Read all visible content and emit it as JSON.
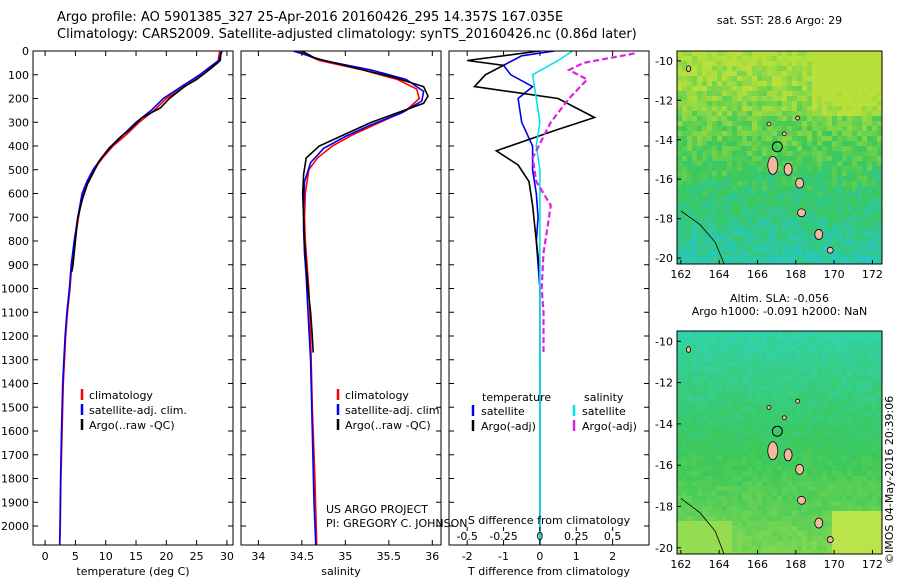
{
  "header": {
    "title_line1": "Argo profile: AO 5901385_327 25-Apr-2016 20160426_295 14.357S 167.035E",
    "title_line2": "Climatology: CARS2009. Satellite-adjusted climatology: synTS_20160426.nc (0.86d later)"
  },
  "credits": {
    "line1": "US ARGO PROJECT",
    "line2": "PI: GREGORY C. JOHNSON",
    "stamp": "©IMOS 04-May-2016 20:39:06"
  },
  "colors": {
    "climatology": "#ff0000",
    "satellite": "#0000ee",
    "argo": "#000000",
    "salinity_satellite": "#00e5e5",
    "salinity_argo": "#e020e0"
  },
  "chart_data": [
    {
      "type": "line",
      "xlabel": "temperature (deg C)",
      "ylabel": "",
      "xlim": [
        -2,
        31
      ],
      "ylim": [
        2080,
        0
      ],
      "xticks": [
        0,
        5,
        10,
        15,
        20,
        25,
        30
      ],
      "yticks": [
        0,
        100,
        200,
        300,
        400,
        500,
        600,
        700,
        800,
        900,
        1000,
        1100,
        1200,
        1300,
        1400,
        1500,
        1600,
        1700,
        1800,
        1900,
        2000
      ],
      "legend_position": "bottom-center",
      "series": [
        {
          "name": "climatology",
          "color": "#ff0000",
          "dashed": false,
          "points": [
            [
              28.8,
              0
            ],
            [
              28.5,
              50
            ],
            [
              26,
              100
            ],
            [
              23,
              150
            ],
            [
              20,
              200
            ],
            [
              18,
              250
            ],
            [
              15.5,
              300
            ],
            [
              13.5,
              350
            ],
            [
              11.2,
              400
            ],
            [
              9.5,
              450
            ],
            [
              8,
              500
            ],
            [
              7,
              550
            ],
            [
              6.2,
              600
            ],
            [
              5.5,
              700
            ],
            [
              4.9,
              800
            ],
            [
              4.4,
              900
            ],
            [
              4.1,
              1000
            ],
            [
              3.7,
              1100
            ],
            [
              3.4,
              1200
            ],
            [
              3.2,
              1300
            ],
            [
              3.0,
              1400
            ],
            [
              2.8,
              1600
            ],
            [
              2.6,
              1800
            ],
            [
              2.5,
              2000
            ],
            [
              2.4,
              2080
            ]
          ]
        },
        {
          "name": "satellite-adj. clim.",
          "color": "#0000ee",
          "dashed": false,
          "points": [
            [
              29.2,
              0
            ],
            [
              28.6,
              40
            ],
            [
              25.5,
              100
            ],
            [
              22.5,
              150
            ],
            [
              19.5,
              200
            ],
            [
              17.5,
              250
            ],
            [
              15,
              300
            ],
            [
              13,
              350
            ],
            [
              11,
              400
            ],
            [
              9.3,
              450
            ],
            [
              7.9,
              500
            ],
            [
              6.9,
              550
            ],
            [
              6.1,
              600
            ],
            [
              5.4,
              700
            ],
            [
              4.8,
              800
            ],
            [
              4.3,
              900
            ],
            [
              4.0,
              1000
            ],
            [
              3.6,
              1100
            ],
            [
              3.3,
              1200
            ],
            [
              3.1,
              1300
            ],
            [
              2.9,
              1400
            ],
            [
              2.7,
              1600
            ],
            [
              2.55,
              1800
            ],
            [
              2.45,
              2000
            ],
            [
              2.4,
              2080
            ]
          ]
        },
        {
          "name": "Argo(..raw -QC)",
          "color": "#000000",
          "dashed": false,
          "points": [
            [
              29,
              5
            ],
            [
              28.9,
              40
            ],
            [
              27,
              80
            ],
            [
              25,
              120
            ],
            [
              23,
              150
            ],
            [
              20.5,
              200
            ],
            [
              19,
              240
            ],
            [
              16,
              280
            ],
            [
              14,
              330
            ],
            [
              12.5,
              360
            ],
            [
              10.5,
              410
            ],
            [
              9,
              460
            ],
            [
              8,
              510
            ],
            [
              7,
              560
            ],
            [
              6.2,
              620
            ],
            [
              5.4,
              700
            ],
            [
              5.0,
              800
            ],
            [
              4.6,
              900
            ],
            [
              4.4,
              930
            ]
          ]
        }
      ]
    },
    {
      "type": "line",
      "xlabel": "salinity",
      "ylabel": "",
      "xlim": [
        33.8,
        36.1
      ],
      "ylim": [
        2080,
        0
      ],
      "xticks": [
        34,
        34.5,
        35,
        35.5,
        36
      ],
      "legend_position": "bottom-center",
      "series": [
        {
          "name": "climatology",
          "color": "#ff0000",
          "dashed": false,
          "points": [
            [
              34.45,
              0
            ],
            [
              34.7,
              40
            ],
            [
              35.2,
              80
            ],
            [
              35.6,
              120
            ],
            [
              35.82,
              160
            ],
            [
              35.85,
              200
            ],
            [
              35.7,
              250
            ],
            [
              35.4,
              300
            ],
            [
              35.1,
              350
            ],
            [
              34.85,
              400
            ],
            [
              34.68,
              450
            ],
            [
              34.58,
              500
            ],
            [
              34.54,
              600
            ],
            [
              34.53,
              700
            ],
            [
              34.54,
              800
            ],
            [
              34.56,
              900
            ],
            [
              34.58,
              1000
            ],
            [
              34.6,
              1200
            ],
            [
              34.62,
              1500
            ],
            [
              34.65,
              1800
            ],
            [
              34.67,
              2080
            ]
          ]
        },
        {
          "name": "satellite-adj. clim.",
          "color": "#0000ee",
          "dashed": false,
          "points": [
            [
              34.4,
              0
            ],
            [
              34.75,
              40
            ],
            [
              35.3,
              80
            ],
            [
              35.7,
              120
            ],
            [
              35.9,
              170
            ],
            [
              35.88,
              210
            ],
            [
              35.65,
              260
            ],
            [
              35.3,
              310
            ],
            [
              35.0,
              360
            ],
            [
              34.75,
              410
            ],
            [
              34.6,
              470
            ],
            [
              34.53,
              550
            ],
            [
              34.52,
              650
            ],
            [
              34.52,
              750
            ],
            [
              34.53,
              850
            ],
            [
              34.55,
              950
            ],
            [
              34.57,
              1100
            ],
            [
              34.6,
              1300
            ],
            [
              34.62,
              1600
            ],
            [
              34.64,
              1900
            ],
            [
              34.66,
              2080
            ]
          ]
        },
        {
          "name": "Argo(..raw -QC)",
          "color": "#000000",
          "dashed": false,
          "points": [
            [
              34.5,
              0
            ],
            [
              34.65,
              30
            ],
            [
              35.1,
              70
            ],
            [
              35.55,
              110
            ],
            [
              35.9,
              150
            ],
            [
              35.95,
              190
            ],
            [
              35.9,
              220
            ],
            [
              35.6,
              260
            ],
            [
              35.3,
              300
            ],
            [
              35.0,
              350
            ],
            [
              34.7,
              400
            ],
            [
              34.55,
              450
            ],
            [
              34.52,
              520
            ],
            [
              34.51,
              600
            ],
            [
              34.52,
              700
            ],
            [
              34.53,
              800
            ],
            [
              34.55,
              900
            ],
            [
              34.57,
              1000
            ],
            [
              34.6,
              1100
            ],
            [
              34.62,
              1200
            ],
            [
              34.63,
              1270
            ]
          ]
        }
      ]
    },
    {
      "type": "line",
      "xlabel": "T difference from climatology",
      "title": "S difference from climatology",
      "xlim": [
        -2.5,
        3
      ],
      "ylim": [
        2080,
        0
      ],
      "xticks": [
        -2,
        -1,
        0,
        1,
        2
      ],
      "top_xticks": [
        -0.5,
        -0.25,
        0,
        0.25,
        0.5
      ],
      "top_tick_labels": [
        "-0.5",
        "-0.25",
        "0",
        "0.25",
        "0.5"
      ],
      "legend_position": "bottom-center",
      "legend_headers": [
        "temperature",
        "salinity"
      ],
      "series": [
        {
          "name": "satellite",
          "quantity": "temperature",
          "color": "#0000ee",
          "dashed": false,
          "points": [
            [
              0.4,
              0
            ],
            [
              -0.5,
              20
            ],
            [
              -1,
              60
            ],
            [
              -0.8,
              100
            ],
            [
              -0.2,
              150
            ],
            [
              -0.6,
              200
            ],
            [
              -0.5,
              300
            ],
            [
              -0.2,
              400
            ],
            [
              -0.2,
              500
            ],
            [
              -0.1,
              600
            ],
            [
              -0.05,
              700
            ],
            [
              -0.1,
              800
            ],
            [
              -0.05,
              900
            ],
            [
              0,
              1000
            ],
            [
              0,
              2080
            ]
          ]
        },
        {
          "name": "Argo(-adj)",
          "quantity": "temperature",
          "color": "#000000",
          "dashed": false,
          "points": [
            [
              0,
              0
            ],
            [
              -2,
              40
            ],
            [
              -1,
              60
            ],
            [
              -1.5,
              100
            ],
            [
              -1.8,
              150
            ],
            [
              0.5,
              200
            ],
            [
              1.5,
              280
            ],
            [
              0.5,
              330
            ],
            [
              -1.2,
              420
            ],
            [
              -0.6,
              480
            ],
            [
              -0.3,
              550
            ],
            [
              -0.2,
              650
            ],
            [
              -0.1,
              800
            ],
            [
              0,
              930
            ]
          ]
        },
        {
          "name": "satellite",
          "quantity": "salinity",
          "color": "#00e5e5",
          "dashed": false,
          "points": [
            [
              0.9,
              0
            ],
            [
              0.5,
              40
            ],
            [
              -0.2,
              100
            ],
            [
              -0.1,
              200
            ],
            [
              0,
              300
            ],
            [
              -0.1,
              400
            ],
            [
              0,
              500
            ],
            [
              0,
              700
            ],
            [
              0,
              1000
            ],
            [
              0,
              1500
            ],
            [
              0,
              2080
            ]
          ]
        },
        {
          "name": "Argo(-adj)",
          "quantity": "salinity",
          "color": "#e020e0",
          "dashed": true,
          "points": [
            [
              2.6,
              10
            ],
            [
              1.2,
              50
            ],
            [
              0.8,
              80
            ],
            [
              1.3,
              120
            ],
            [
              0.8,
              200
            ],
            [
              0.3,
              300
            ],
            [
              -0.2,
              450
            ],
            [
              -0.1,
              550
            ],
            [
              0.3,
              650
            ],
            [
              0.2,
              750
            ],
            [
              0.1,
              850
            ],
            [
              0.05,
              1000
            ],
            [
              0.1,
              1100
            ],
            [
              0.1,
              1200
            ],
            [
              0.1,
              1270
            ]
          ]
        }
      ]
    },
    {
      "type": "heatmap",
      "title": "sat. SST: 28.6 Argo: 29",
      "xlim": [
        161.8,
        172.5
      ],
      "ylim": [
        -20.3,
        -9.5
      ],
      "xticks": [
        162,
        164,
        166,
        168,
        170,
        172
      ],
      "yticks": [
        -10,
        -12,
        -14,
        -16,
        -18,
        -20
      ],
      "marker": {
        "lon": 167.035,
        "lat": -14.357
      }
    },
    {
      "type": "heatmap",
      "title_line1": "Altim. SLA: -0.056",
      "title_line2": "Argo h1000: -0.091 h2000: NaN",
      "xlim": [
        161.8,
        172.5
      ],
      "ylim": [
        -20.3,
        -9.5
      ],
      "xticks": [
        162,
        164,
        166,
        168,
        170,
        172
      ],
      "yticks": [
        -10,
        -12,
        -14,
        -16,
        -18,
        -20
      ],
      "marker": {
        "lon": 167.035,
        "lat": -14.357
      }
    }
  ]
}
